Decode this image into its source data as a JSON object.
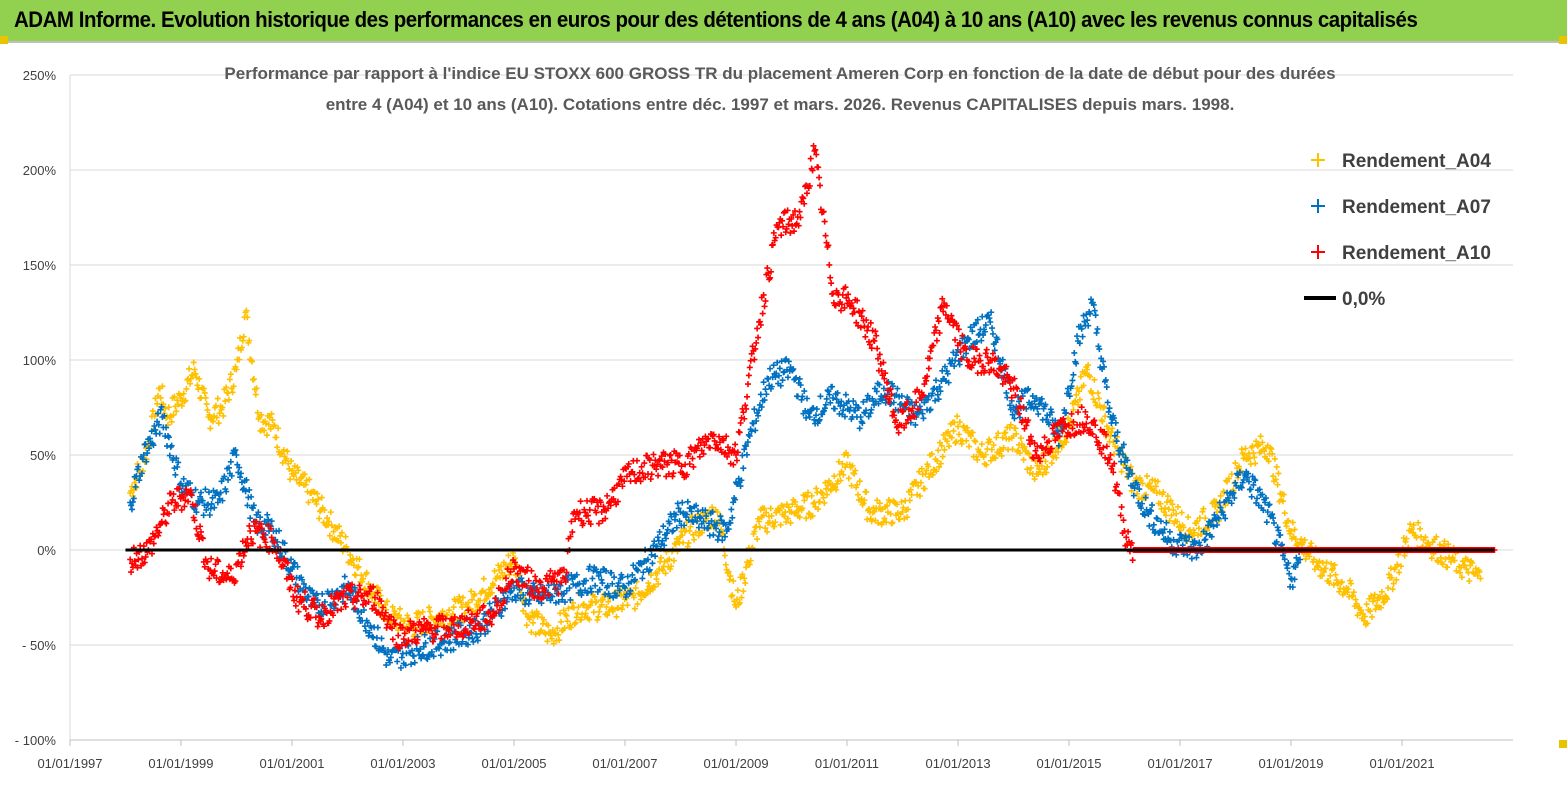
{
  "header": {
    "title": "ADAM Informe. Evolution historique des performances en euros pour des détentions de 4 ans (A04) à 10 ans (A10) avec les revenus connus capitalisés"
  },
  "chart_data": {
    "type": "scatter",
    "title_line1": "Performance par rapport à l'indice EU STOXX 600 GROSS TR  du placement Ameren Corp en fonction de la date de début pour des durées",
    "title_line2": "entre 4 (A04) et 10 ans (A10). Cotations entre déc. 1997 et mars. 2026. Revenus CAPITALISES depuis mars. 1998.",
    "xlabel": "",
    "ylabel": "",
    "x_ticks": [
      "01/01/1997",
      "01/01/1999",
      "01/01/2001",
      "01/01/2003",
      "01/01/2005",
      "01/01/2007",
      "01/01/2009",
      "01/01/2011",
      "01/01/2013",
      "01/01/2015",
      "01/01/2017",
      "01/01/2019",
      "01/01/2021"
    ],
    "y_ticks": [
      "250%",
      "200%",
      "150%",
      "100%",
      "50%",
      "0%",
      "- 50%",
      "- 100%"
    ],
    "xlim": [
      "1997-01-01",
      "2023-01-01"
    ],
    "ylim": [
      -100,
      250
    ],
    "grid": "horizontal",
    "legend_position": "top-right",
    "series": [
      {
        "name": "Rendement_A04",
        "color": "#ffc000",
        "marker": "plus",
        "points": [
          [
            "1998-02-01",
            30
          ],
          [
            "1998-06-01",
            55
          ],
          [
            "1998-08-15",
            85
          ],
          [
            "1998-10-01",
            70
          ],
          [
            "1999-01-01",
            80
          ],
          [
            "1999-04-01",
            95
          ],
          [
            "1999-07-01",
            70
          ],
          [
            "1999-10-01",
            75
          ],
          [
            "2000-01-01",
            95
          ],
          [
            "2000-03-01",
            125
          ],
          [
            "2000-06-01",
            70
          ],
          [
            "2000-09-01",
            65
          ],
          [
            "2001-01-01",
            40
          ],
          [
            "2001-05-01",
            30
          ],
          [
            "2001-09-01",
            15
          ],
          [
            "2002-01-01",
            0
          ],
          [
            "2002-06-01",
            -20
          ],
          [
            "2002-10-01",
            -35
          ],
          [
            "2003-03-01",
            -40
          ],
          [
            "2003-09-01",
            -35
          ],
          [
            "2004-03-01",
            -30
          ],
          [
            "2004-09-01",
            -15
          ],
          [
            "2005-01-01",
            -5
          ],
          [
            "2005-04-01",
            -35
          ],
          [
            "2005-09-01",
            -45
          ],
          [
            "2006-03-01",
            -30
          ],
          [
            "2006-09-01",
            -30
          ],
          [
            "2007-03-01",
            -25
          ],
          [
            "2007-09-01",
            -10
          ],
          [
            "2008-03-01",
            10
          ],
          [
            "2008-09-01",
            20
          ],
          [
            "2009-01-01",
            -30
          ],
          [
            "2009-06-01",
            15
          ],
          [
            "2010-01-01",
            20
          ],
          [
            "2010-06-01",
            25
          ],
          [
            "2011-01-01",
            45
          ],
          [
            "2011-06-01",
            20
          ],
          [
            "2012-01-01",
            20
          ],
          [
            "2012-06-01",
            40
          ],
          [
            "2013-01-01",
            65
          ],
          [
            "2013-06-01",
            50
          ],
          [
            "2014-01-01",
            60
          ],
          [
            "2014-06-01",
            40
          ],
          [
            "2015-01-01",
            65
          ],
          [
            "2015-05-01",
            95
          ],
          [
            "2015-10-01",
            60
          ],
          [
            "2016-03-01",
            35
          ],
          [
            "2016-08-01",
            30
          ],
          [
            "2017-03-01",
            10
          ],
          [
            "2017-09-01",
            20
          ],
          [
            "2018-03-01",
            50
          ],
          [
            "2018-08-01",
            55
          ],
          [
            "2019-01-01",
            10
          ],
          [
            "2019-06-01",
            -5
          ],
          [
            "2020-01-01",
            -20
          ],
          [
            "2020-05-01",
            -35
          ],
          [
            "2020-10-01",
            -20
          ],
          [
            "2021-03-01",
            10
          ],
          [
            "2021-09-01",
            0
          ],
          [
            "2022-03-01",
            -10
          ],
          [
            "2022-06-01",
            -15
          ]
        ]
      },
      {
        "name": "Rendement_A07",
        "color": "#0070c0",
        "marker": "plus",
        "points": [
          [
            "1998-02-01",
            25
          ],
          [
            "1998-05-01",
            50
          ],
          [
            "1998-09-01",
            70
          ],
          [
            "1999-01-01",
            35
          ],
          [
            "1999-05-01",
            25
          ],
          [
            "1999-09-01",
            25
          ],
          [
            "2000-01-01",
            50
          ],
          [
            "2000-05-01",
            15
          ],
          [
            "2000-09-01",
            10
          ],
          [
            "2001-01-01",
            -10
          ],
          [
            "2001-06-01",
            -30
          ],
          [
            "2002-01-01",
            -20
          ],
          [
            "2002-06-01",
            -40
          ],
          [
            "2002-10-01",
            -58
          ],
          [
            "2003-04-01",
            -52
          ],
          [
            "2003-10-01",
            -48
          ],
          [
            "2004-06-01",
            -40
          ],
          [
            "2005-01-01",
            -20
          ],
          [
            "2005-06-01",
            -25
          ],
          [
            "2006-01-01",
            -20
          ],
          [
            "2006-06-01",
            -15
          ],
          [
            "2007-01-01",
            -20
          ],
          [
            "2007-06-01",
            -5
          ],
          [
            "2008-01-01",
            20
          ],
          [
            "2008-06-01",
            15
          ],
          [
            "2008-11-01",
            10
          ],
          [
            "2009-04-01",
            60
          ],
          [
            "2009-08-01",
            90
          ],
          [
            "2010-01-01",
            95
          ],
          [
            "2010-05-01",
            70
          ],
          [
            "2010-10-01",
            80
          ],
          [
            "2011-04-01",
            70
          ],
          [
            "2011-09-01",
            85
          ],
          [
            "2012-04-01",
            70
          ],
          [
            "2012-10-01",
            90
          ],
          [
            "2013-03-01",
            110
          ],
          [
            "2013-08-01",
            120
          ],
          [
            "2014-01-01",
            75
          ],
          [
            "2014-06-01",
            80
          ],
          [
            "2014-11-01",
            60
          ],
          [
            "2015-03-01",
            110
          ],
          [
            "2015-06-01",
            130
          ],
          [
            "2015-10-01",
            70
          ],
          [
            "2016-02-01",
            40
          ],
          [
            "2016-06-01",
            20
          ],
          [
            "2016-11-01",
            5
          ],
          [
            "2017-05-01",
            0
          ],
          [
            "2017-10-01",
            20
          ],
          [
            "2018-03-01",
            40
          ],
          [
            "2018-08-01",
            20
          ],
          [
            "2019-01-01",
            -15
          ],
          [
            "2019-03-01",
            -5
          ]
        ]
      },
      {
        "name": "Rendement_A10",
        "color": "#ff0000",
        "marker": "plus",
        "points": [
          [
            "1998-02-01",
            -5
          ],
          [
            "1998-06-01",
            0
          ],
          [
            "1998-11-01",
            25
          ],
          [
            "1999-03-01",
            30
          ],
          [
            "1999-07-01",
            -10
          ],
          [
            "1999-12-01",
            -15
          ],
          [
            "2000-04-01",
            10
          ],
          [
            "2000-09-01",
            5
          ],
          [
            "2001-02-01",
            -25
          ],
          [
            "2001-07-01",
            -35
          ],
          [
            "2002-01-01",
            -25
          ],
          [
            "2002-07-01",
            -25
          ],
          [
            "2002-12-01",
            -45
          ],
          [
            "2003-06-01",
            -42
          ],
          [
            "2004-01-01",
            -40
          ],
          [
            "2004-08-01",
            -35
          ],
          [
            "2005-01-01",
            -10
          ],
          [
            "2005-06-01",
            -20
          ],
          [
            "2005-12-01",
            -15
          ],
          [
            "2006-02-01",
            20
          ],
          [
            "2006-08-01",
            20
          ],
          [
            "2007-02-01",
            40
          ],
          [
            "2007-08-01",
            45
          ],
          [
            "2008-02-01",
            45
          ],
          [
            "2008-08-01",
            60
          ],
          [
            "2009-01-01",
            50
          ],
          [
            "2009-06-01",
            120
          ],
          [
            "2009-10-01",
            170
          ],
          [
            "2010-03-01",
            175
          ],
          [
            "2010-06-01",
            210
          ],
          [
            "2010-10-01",
            135
          ],
          [
            "2011-02-01",
            130
          ],
          [
            "2011-07-01",
            110
          ],
          [
            "2011-12-01",
            65
          ],
          [
            "2012-05-01",
            80
          ],
          [
            "2012-10-01",
            130
          ],
          [
            "2013-03-01",
            100
          ],
          [
            "2013-08-01",
            100
          ],
          [
            "2014-01-01",
            85
          ],
          [
            "2014-06-01",
            50
          ],
          [
            "2014-12-01",
            65
          ],
          [
            "2015-05-01",
            70
          ],
          [
            "2015-10-01",
            50
          ],
          [
            "2016-01-01",
            10
          ],
          [
            "2016-03-01",
            0
          ],
          [
            "2017-01-01",
            0
          ],
          [
            "2018-01-01",
            0
          ],
          [
            "2019-01-01",
            0
          ],
          [
            "2020-01-01",
            0
          ],
          [
            "2021-01-01",
            0
          ],
          [
            "2022-09-01",
            0
          ]
        ]
      }
    ],
    "reference_line": {
      "name": "0,0%",
      "value": 0,
      "color": "#000000"
    }
  }
}
